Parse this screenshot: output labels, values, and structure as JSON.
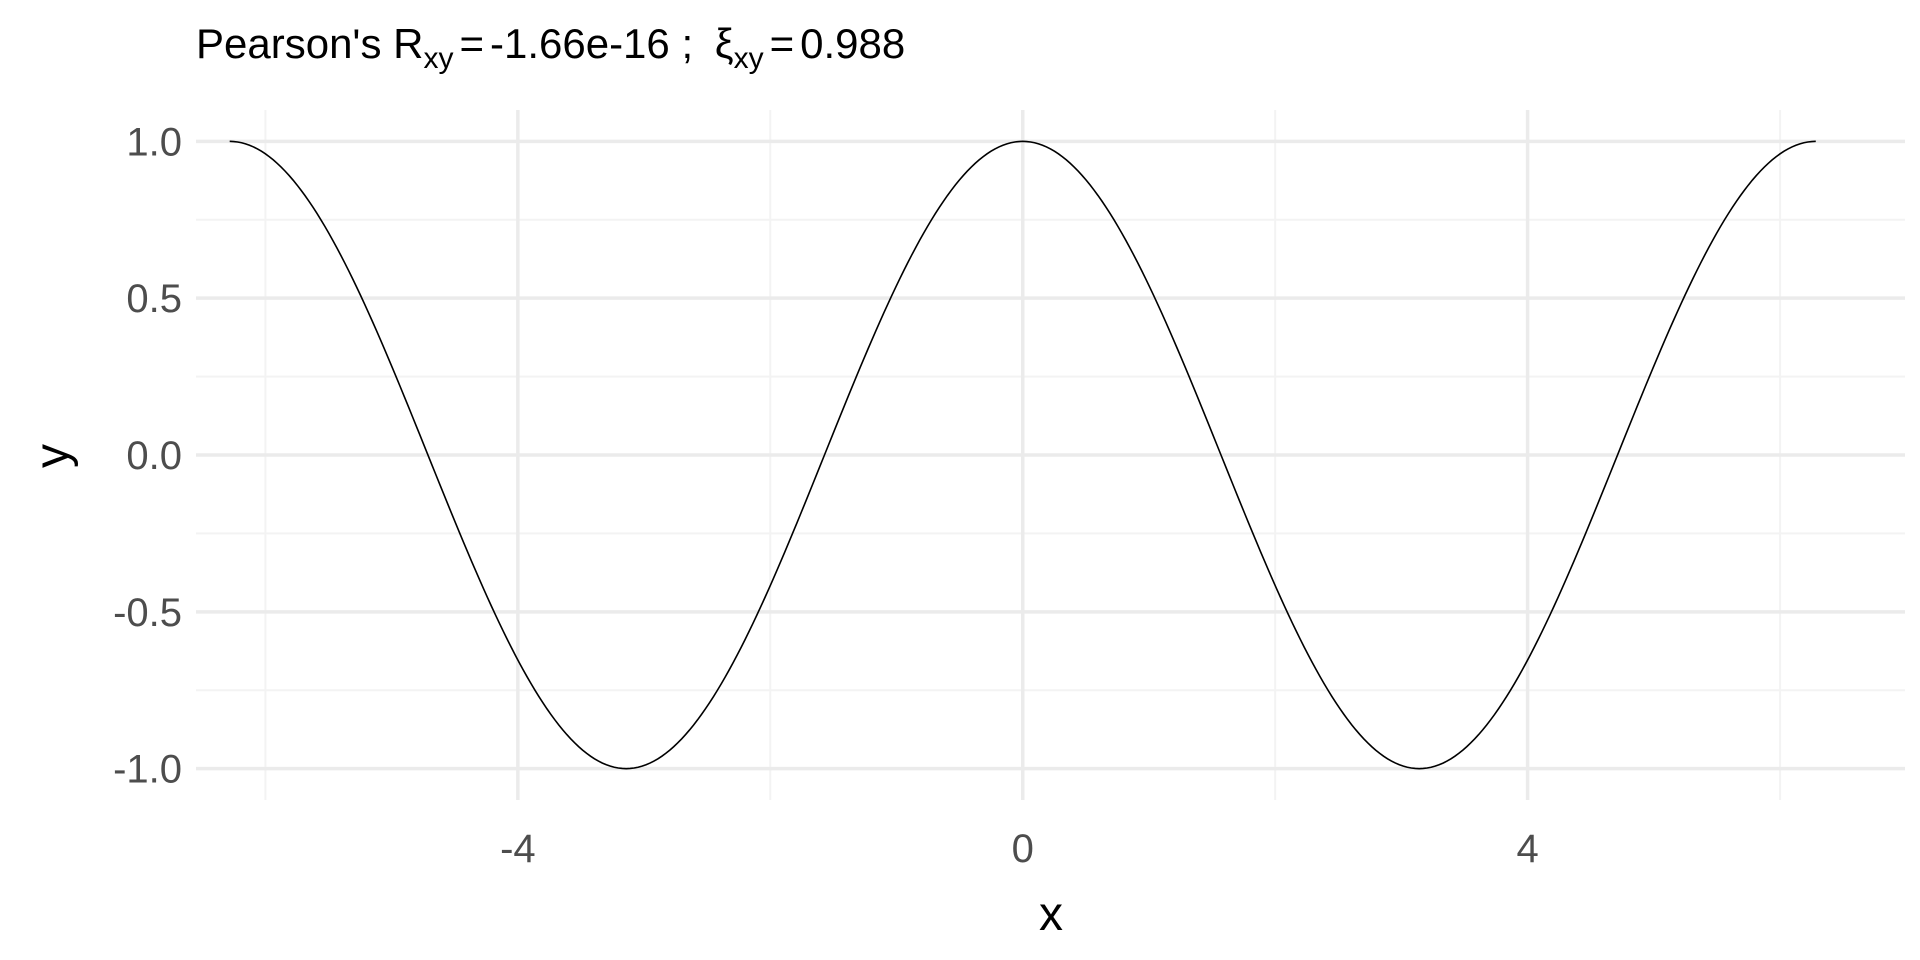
{
  "chart_data": {
    "type": "line",
    "title": {
      "prefix": "Pearson's R",
      "r_subscript": "xy",
      "eq1": "=",
      "r_value": "-1.66e-16",
      "separator": " ; ",
      "xi_symbol": "ξ",
      "xi_subscript": "xy",
      "eq2": "=",
      "xi_value": "0.988"
    },
    "xlabel": "x",
    "ylabel": "y",
    "xlim": [
      -6.55,
      6.99
    ],
    "ylim": [
      -1.1,
      1.1
    ],
    "x_ticks": [
      -4,
      0,
      4
    ],
    "x_tick_labels": [
      "-4",
      "0",
      "4"
    ],
    "x_minor_ticks": [
      -6,
      -2,
      2,
      6
    ],
    "y_ticks": [
      1.0,
      0.5,
      0.0,
      -0.5,
      -1.0
    ],
    "y_tick_labels": [
      "1.0",
      "0.5",
      "0.0",
      "-0.5",
      "-1.0"
    ],
    "y_minor_ticks": [
      0.75,
      0.25,
      -0.25,
      -0.75
    ],
    "grid": true,
    "series": [
      {
        "function": "cos",
        "x_start": -6.283,
        "x_end": 6.283,
        "n_points": 400,
        "color": "#000000"
      }
    ],
    "colors": {
      "grid_major": "#ebebeb",
      "grid_minor": "#f3f3f3",
      "tick_text": "#4d4d4d",
      "line": "#000000"
    }
  }
}
